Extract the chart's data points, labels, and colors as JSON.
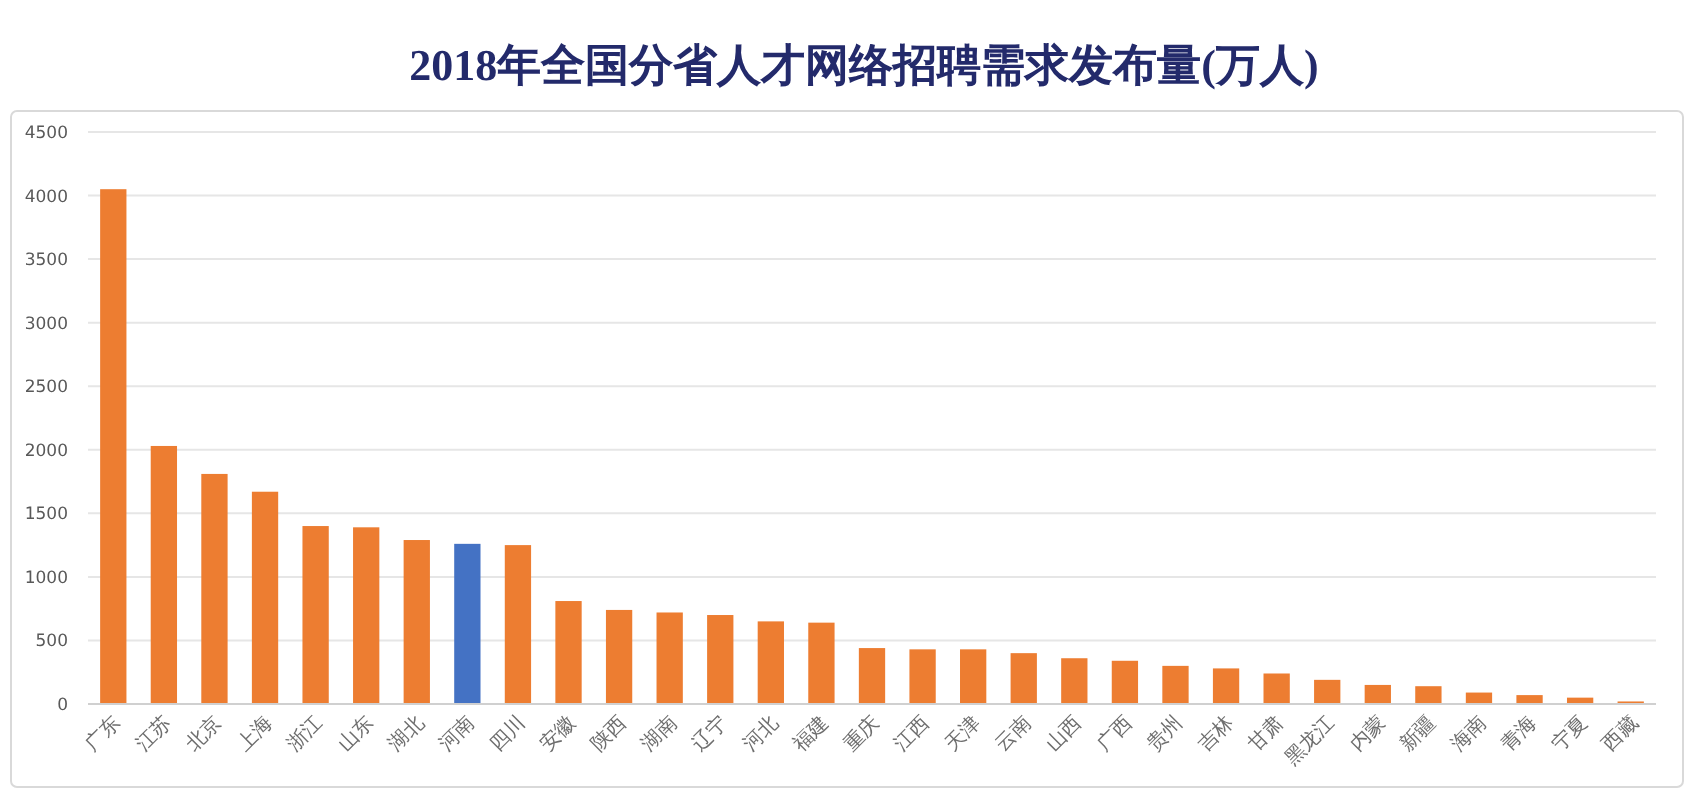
{
  "chart_data": {
    "type": "bar",
    "title": "2018年全国分省人才网络招聘需求发布量(万人)",
    "categories": [
      "广东",
      "江苏",
      "北京",
      "上海",
      "浙江",
      "山东",
      "湖北",
      "河南",
      "四川",
      "安徽",
      "陕西",
      "湖南",
      "辽宁",
      "河北",
      "福建",
      "重庆",
      "江西",
      "天津",
      "云南",
      "山西",
      "广西",
      "贵州",
      "吉林",
      "甘肃",
      "黑龙江",
      "内蒙",
      "新疆",
      "海南",
      "青海",
      "宁夏",
      "西藏"
    ],
    "values": [
      4050,
      2030,
      1810,
      1670,
      1400,
      1390,
      1290,
      1260,
      1250,
      810,
      740,
      720,
      700,
      650,
      640,
      440,
      430,
      430,
      400,
      360,
      340,
      300,
      280,
      240,
      190,
      150,
      140,
      90,
      70,
      50,
      20
    ],
    "colors": [
      "#ed7d31",
      "#ed7d31",
      "#ed7d31",
      "#ed7d31",
      "#ed7d31",
      "#ed7d31",
      "#ed7d31",
      "#4472c4",
      "#ed7d31",
      "#ed7d31",
      "#ed7d31",
      "#ed7d31",
      "#ed7d31",
      "#ed7d31",
      "#ed7d31",
      "#ed7d31",
      "#ed7d31",
      "#ed7d31",
      "#ed7d31",
      "#ed7d31",
      "#ed7d31",
      "#ed7d31",
      "#ed7d31",
      "#ed7d31",
      "#ed7d31",
      "#ed7d31",
      "#ed7d31",
      "#ed7d31",
      "#ed7d31",
      "#ed7d31",
      "#ed7d31"
    ],
    "ylim": [
      0,
      4500
    ],
    "yticks": [
      0,
      500,
      1000,
      1500,
      2000,
      2500,
      3000,
      3500,
      4000,
      4500
    ],
    "grid": "y"
  }
}
